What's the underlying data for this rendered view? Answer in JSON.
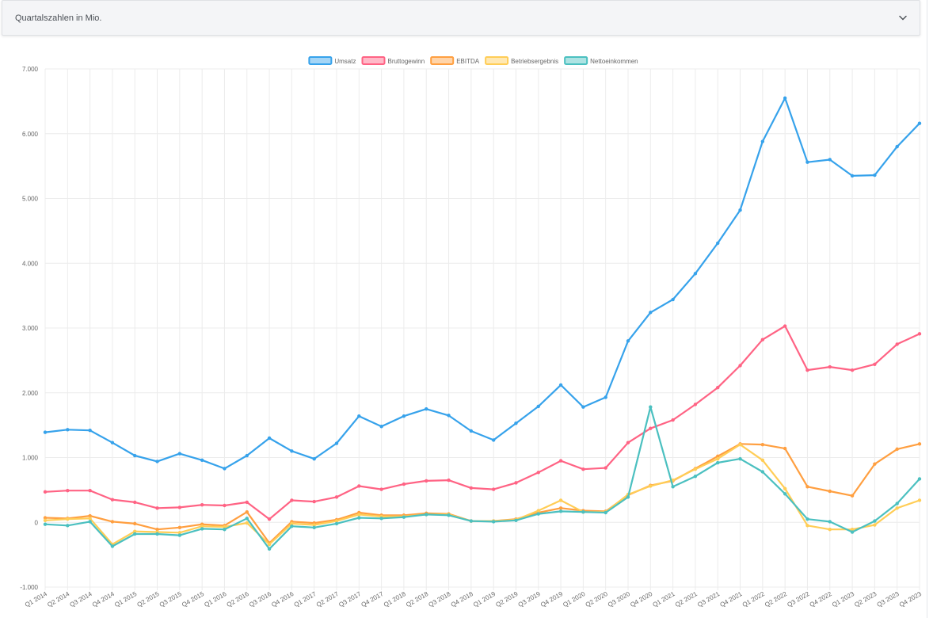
{
  "panel": {
    "title": "Quartalszahlen in Mio."
  },
  "colors": {
    "Umsatz": "#36a2eb",
    "Bruttogewinn": "#ff6384",
    "EBITDA": "#ff9f40",
    "Betriebsergebnis": "#ffcd56",
    "Nettoeinkommen": "#4bc0c0",
    "grid": "#ececec",
    "tick": "#666666"
  },
  "chart_data": {
    "type": "line",
    "title": "",
    "xlabel": "",
    "ylabel": "",
    "ylim": [
      -1000,
      7000
    ],
    "y_ticks": [
      "-1.000",
      "0",
      "1.000",
      "2.000",
      "3.000",
      "4.000",
      "5.000",
      "6.000",
      "7.000"
    ],
    "grid": true,
    "legend_position": "top",
    "categories": [
      "Q1 2014",
      "Q2 2014",
      "Q3 2014",
      "Q4 2014",
      "Q1 2015",
      "Q2 2015",
      "Q3 2015",
      "Q4 2015",
      "Q1 2016",
      "Q2 2016",
      "Q3 2016",
      "Q4 2016",
      "Q1 2017",
      "Q2 2017",
      "Q3 2017",
      "Q4 2017",
      "Q1 2018",
      "Q2 2018",
      "Q3 2018",
      "Q4 2018",
      "Q1 2019",
      "Q2 2019",
      "Q3 2019",
      "Q4 2019",
      "Q1 2020",
      "Q2 2020",
      "Q3 2020",
      "Q4 2020",
      "Q1 2021",
      "Q2 2021",
      "Q3 2021",
      "Q4 2021",
      "Q1 2022",
      "Q2 2022",
      "Q3 2022",
      "Q4 2022",
      "Q1 2023",
      "Q2 2023",
      "Q3 2023",
      "Q4 2023"
    ],
    "series": [
      {
        "name": "Umsatz",
        "values": [
          1390,
          1430,
          1420,
          1230,
          1030,
          940,
          1060,
          960,
          830,
          1030,
          1300,
          1100,
          980,
          1220,
          1640,
          1480,
          1640,
          1750,
          1650,
          1410,
          1270,
          1530,
          1790,
          2120,
          1780,
          1930,
          2800,
          3240,
          3440,
          3840,
          4310,
          4820,
          5880,
          6550,
          5560,
          5600,
          5350,
          5360,
          5800,
          6160
        ]
      },
      {
        "name": "Bruttogewinn",
        "values": [
          470,
          490,
          490,
          350,
          310,
          220,
          230,
          270,
          260,
          310,
          50,
          340,
          320,
          390,
          560,
          510,
          590,
          640,
          650,
          530,
          510,
          610,
          770,
          950,
          820,
          840,
          1230,
          1450,
          1580,
          1820,
          2080,
          2420,
          2820,
          3030,
          2350,
          2400,
          2350,
          2440,
          2750,
          2910
        ]
      },
      {
        "name": "EBITDA",
        "values": [
          70,
          60,
          100,
          10,
          -20,
          -110,
          -80,
          -30,
          -50,
          160,
          -320,
          10,
          -10,
          40,
          150,
          110,
          110,
          140,
          130,
          20,
          20,
          50,
          150,
          220,
          180,
          170,
          420,
          570,
          640,
          830,
          1020,
          1210,
          1200,
          1140,
          550,
          480,
          410,
          900,
          1130,
          1210
        ]
      },
      {
        "name": "Betriebsergebnis",
        "values": [
          30,
          50,
          60,
          -340,
          -140,
          -150,
          -160,
          -60,
          -70,
          -10,
          -340,
          -20,
          -40,
          20,
          120,
          90,
          90,
          120,
          120,
          20,
          20,
          40,
          180,
          340,
          160,
          160,
          430,
          560,
          650,
          820,
          980,
          1200,
          960,
          520,
          -50,
          -110,
          -110,
          -40,
          220,
          340
        ]
      },
      {
        "name": "Nettoeinkommen",
        "values": [
          -30,
          -50,
          10,
          -370,
          -180,
          -180,
          -200,
          -100,
          -110,
          60,
          -410,
          -60,
          -80,
          -20,
          70,
          60,
          80,
          120,
          110,
          20,
          10,
          30,
          130,
          170,
          160,
          150,
          390,
          1780,
          550,
          710,
          920,
          980,
          780,
          440,
          50,
          10,
          -150,
          20,
          290,
          670
        ]
      }
    ]
  }
}
